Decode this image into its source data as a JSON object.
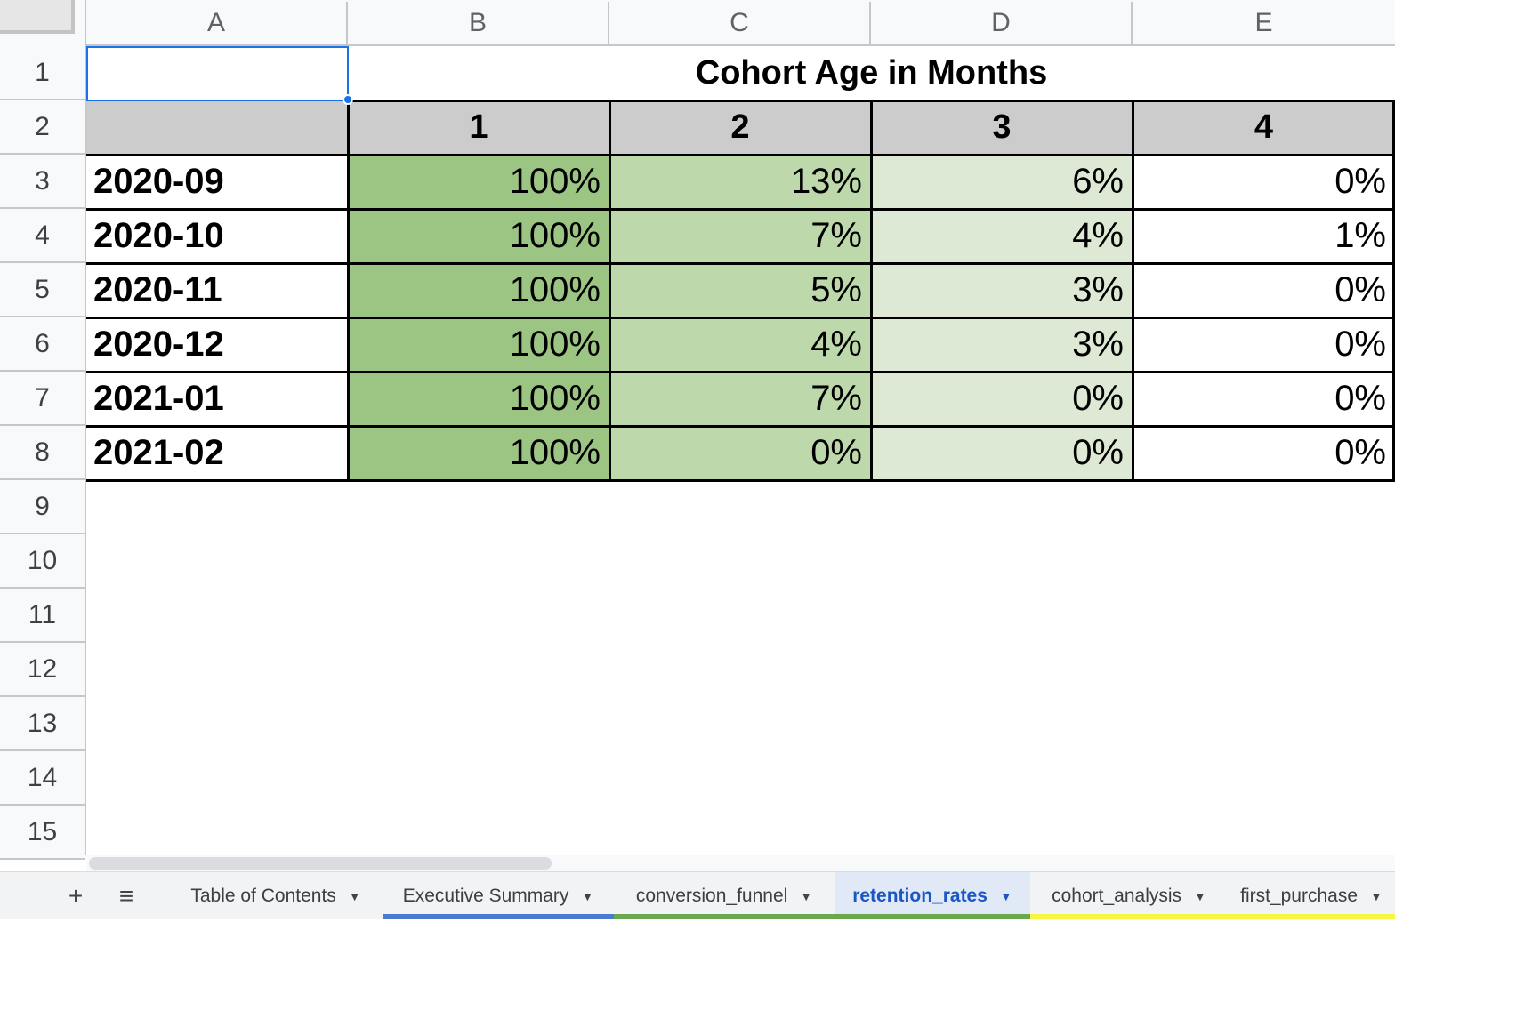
{
  "columns": [
    "A",
    "B",
    "C",
    "D",
    "E"
  ],
  "rows": [
    "1",
    "2",
    "3",
    "4",
    "5",
    "6",
    "7",
    "8",
    "9",
    "10",
    "11",
    "12",
    "13",
    "14",
    "15"
  ],
  "title": "Cohort Age in Months",
  "month_headers": [
    "1",
    "2",
    "3",
    "4"
  ],
  "table": [
    {
      "cohort": "2020-09",
      "values": [
        "100%",
        "13%",
        "6%",
        "0%"
      ]
    },
    {
      "cohort": "2020-10",
      "values": [
        "100%",
        "7%",
        "4%",
        "1%"
      ]
    },
    {
      "cohort": "2020-11",
      "values": [
        "100%",
        "5%",
        "3%",
        "0%"
      ]
    },
    {
      "cohort": "2020-12",
      "values": [
        "100%",
        "4%",
        "3%",
        "0%"
      ]
    },
    {
      "cohort": "2021-01",
      "values": [
        "100%",
        "7%",
        "0%",
        "0%"
      ]
    },
    {
      "cohort": "2021-02",
      "values": [
        "100%",
        "0%",
        "0%",
        "0%"
      ]
    }
  ],
  "colors": {
    "month1_fill": "#9cc482",
    "month2_fill": "#bdd9ab",
    "month3_fill": "#dde9d4",
    "month4_fill": "#ffffff",
    "header_fill": "#cccccc",
    "selection": "#1a73e8"
  },
  "tabbar": {
    "add_icon": "+",
    "menu_icon": "≡",
    "dropdown_icon": "▼",
    "tabs": [
      {
        "label": "Table of Contents",
        "color": ""
      },
      {
        "label": "Executive Summary",
        "color": "#4a7bd0"
      },
      {
        "label": "conversion_funnel",
        "color": "#6aa84f"
      },
      {
        "label": "retention_rates",
        "color": "#6aa84f",
        "active": true
      },
      {
        "label": "cohort_analysis",
        "color": "#f5f542"
      },
      {
        "label": "first_purchase",
        "color": "#f5f542"
      }
    ]
  }
}
